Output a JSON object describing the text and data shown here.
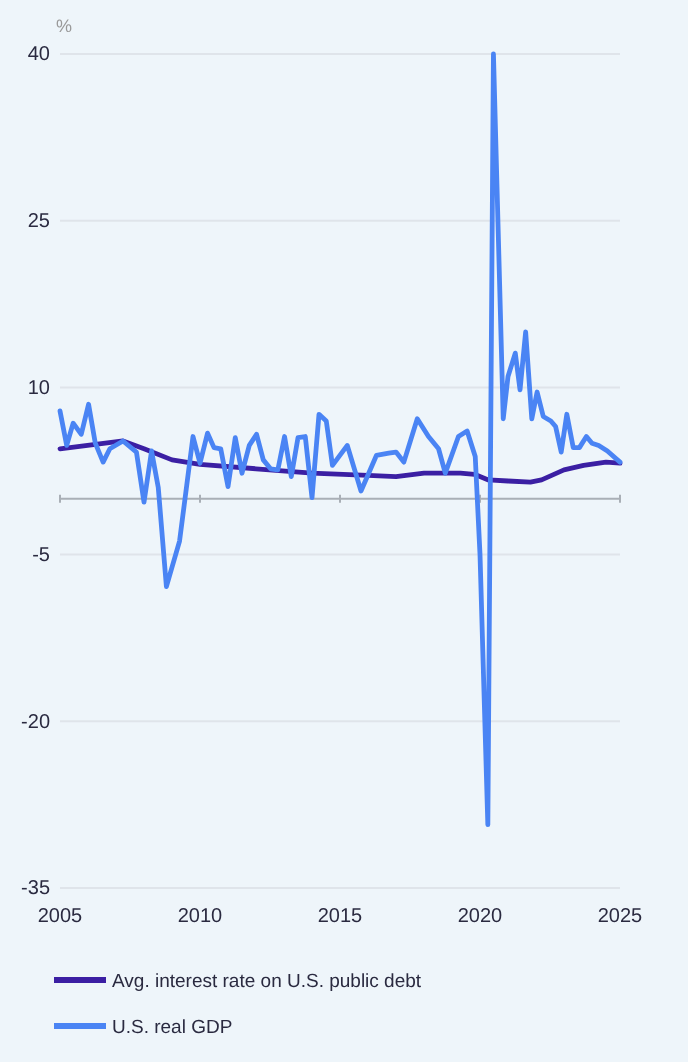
{
  "chart_data": {
    "type": "line",
    "ylabel": "%",
    "xlim": [
      2005,
      2025
    ],
    "xticks": [
      2005,
      2010,
      2015,
      2020,
      2025
    ],
    "ylim": [
      -35,
      40
    ],
    "yticks": [
      -35,
      -20,
      -5,
      10,
      25,
      40
    ],
    "grid": "y",
    "legend": "bottom",
    "marker": "none",
    "line_style": "solid",
    "series": [
      {
        "name": "Avg. interest rate on U.S. public debt",
        "color": "#3b1fa3",
        "x": [
          2005.0,
          2007.25,
          2008.0,
          2009.0,
          2010.0,
          2012.0,
          2014.0,
          2016.0,
          2017.0,
          2018.0,
          2019.3,
          2019.8,
          2020.3,
          2021.0,
          2021.8,
          2022.2,
          2023.0,
          2023.7,
          2024.5,
          2025.0
        ],
        "values": [
          4.5,
          5.2,
          4.5,
          3.5,
          3.1,
          2.7,
          2.3,
          2.1,
          2.0,
          2.3,
          2.3,
          2.2,
          1.7,
          1.6,
          1.5,
          1.7,
          2.6,
          3.0,
          3.3,
          3.2
        ]
      },
      {
        "name": "U.S. real GDP",
        "color": "#4a84f4",
        "x": [
          2005.0,
          2005.24,
          2005.47,
          2005.76,
          2006.02,
          2006.26,
          2006.54,
          2006.78,
          2007.25,
          2007.73,
          2008.0,
          2008.27,
          2008.51,
          2008.8,
          2009.27,
          2009.75,
          2010.0,
          2010.27,
          2010.5,
          2010.74,
          2011.0,
          2011.26,
          2011.5,
          2011.76,
          2012.02,
          2012.26,
          2012.52,
          2012.78,
          2013.02,
          2013.26,
          2013.5,
          2013.76,
          2014.0,
          2014.25,
          2014.51,
          2014.73,
          2015.26,
          2015.75,
          2016.3,
          2016.74,
          2017.0,
          2017.28,
          2017.76,
          2018.16,
          2018.52,
          2018.76,
          2019.23,
          2019.54,
          2019.83,
          2020.0,
          2020.28,
          2020.48,
          2020.83,
          2021.0,
          2021.26,
          2021.43,
          2021.63,
          2021.85,
          2022.04,
          2022.26,
          2022.53,
          2022.7,
          2022.9,
          2023.1,
          2023.33,
          2023.55,
          2023.8,
          2024.0,
          2024.24,
          2024.55,
          2025.0
        ],
        "values": [
          7.9,
          4.8,
          6.8,
          5.8,
          8.5,
          5.0,
          3.3,
          4.5,
          5.2,
          4.2,
          -0.3,
          4.3,
          1.0,
          -7.9,
          -3.8,
          5.6,
          3.2,
          5.9,
          4.6,
          4.5,
          1.1,
          5.5,
          2.3,
          4.8,
          5.8,
          3.5,
          2.7,
          2.6,
          5.6,
          2.0,
          5.5,
          5.6,
          0.1,
          7.6,
          7.0,
          3.0,
          4.8,
          0.7,
          3.9,
          4.1,
          4.2,
          3.3,
          7.2,
          5.6,
          4.5,
          2.3,
          5.6,
          6.1,
          3.8,
          -5,
          -29.3,
          40,
          7.2,
          11.0,
          13.1,
          9.8,
          15.0,
          7.2,
          9.6,
          7.4,
          7.0,
          6.5,
          4.2,
          7.6,
          4.6,
          4.6,
          5.6,
          5.0,
          4.8,
          4.3,
          3.3
        ]
      }
    ]
  }
}
